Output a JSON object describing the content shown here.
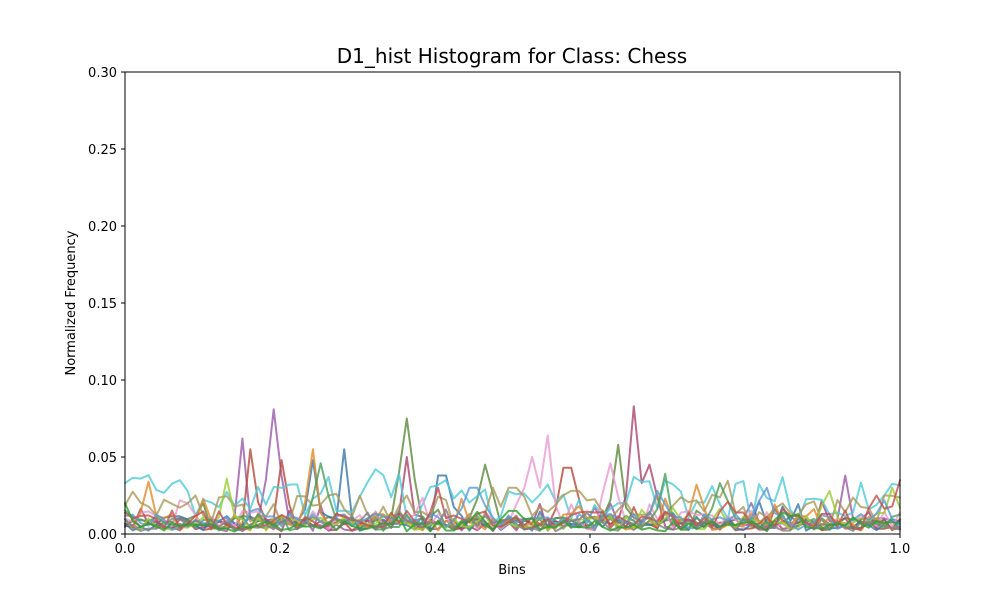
{
  "chart_data": {
    "type": "line",
    "title": "D1_hist Histogram for Class: Chess",
    "xlabel": "Bins",
    "ylabel": "Normalized Frequency",
    "xlim": [
      0.0,
      1.0
    ],
    "ylim": [
      0.0,
      0.3
    ],
    "xticks": [
      "0.0",
      "0.2",
      "0.4",
      "0.6",
      "0.8",
      "1.0"
    ],
    "yticks": [
      "0.00",
      "0.05",
      "0.10",
      "0.15",
      "0.20",
      "0.25",
      "0.30"
    ],
    "grid": false,
    "legend": "none",
    "bins": 100,
    "series": [
      {
        "color": "#9b59a8",
        "peaks": [
          [
            0.19,
            0.081
          ],
          [
            0.15,
            0.062
          ],
          [
            0.93,
            0.038
          ]
        ],
        "base": 0.006
      },
      {
        "color": "#b5493a",
        "peaks": [
          [
            0.16,
            0.055
          ],
          [
            0.2,
            0.048
          ],
          [
            0.57,
            0.043
          ]
        ],
        "base": 0.006
      },
      {
        "color": "#5b8a3c",
        "peaks": [
          [
            0.365,
            0.075
          ],
          [
            0.465,
            0.045
          ],
          [
            0.64,
            0.058
          ]
        ],
        "base": 0.007
      },
      {
        "color": "#a8466e",
        "peaks": [
          [
            0.655,
            0.083
          ],
          [
            0.675,
            0.045
          ],
          [
            0.365,
            0.05
          ]
        ],
        "base": 0.006
      },
      {
        "color": "#3a74a8",
        "peaks": [
          [
            0.28,
            0.055
          ],
          [
            0.24,
            0.048
          ],
          [
            0.41,
            0.038
          ]
        ],
        "base": 0.007
      },
      {
        "color": "#4ec9d6",
        "peaks": [
          [
            0.0,
            0.033
          ],
          [
            0.02,
            0.036
          ],
          [
            0.07,
            0.032
          ],
          [
            0.32,
            0.042
          ],
          [
            0.2,
            0.03
          ]
        ],
        "base": 0.022
      },
      {
        "color": "#e89ad0",
        "peaks": [
          [
            0.545,
            0.064
          ],
          [
            0.525,
            0.05
          ],
          [
            0.625,
            0.046
          ]
        ],
        "base": 0.009
      },
      {
        "color": "#e0892a",
        "peaks": [
          [
            0.245,
            0.055
          ],
          [
            0.03,
            0.034
          ],
          [
            0.735,
            0.032
          ],
          [
            0.1,
            0.023
          ]
        ],
        "base": 0.008
      },
      {
        "color": "#a89a5a",
        "peaks": [
          [
            0.5,
            0.03
          ],
          [
            0.58,
            0.028
          ],
          [
            0.26,
            0.025
          ]
        ],
        "base": 0.015
      },
      {
        "color": "#4a9e5a",
        "peaks": [
          [
            0.255,
            0.046
          ],
          [
            0.695,
            0.039
          ],
          [
            0.77,
            0.033
          ]
        ],
        "base": 0.007
      },
      {
        "color": "#9acd32",
        "peaks": [
          [
            0.91,
            0.028
          ],
          [
            0.13,
            0.036
          ],
          [
            0.99,
            0.03
          ]
        ],
        "base": 0.007
      },
      {
        "color": "#5b9bd5",
        "peaks": [
          [
            0.83,
            0.03
          ],
          [
            0.45,
            0.03
          ],
          [
            0.69,
            0.028
          ]
        ],
        "base": 0.008
      },
      {
        "color": "#c0504d",
        "peaks": [
          [
            0.97,
            0.025
          ],
          [
            1.0,
            0.035
          ],
          [
            0.4,
            0.03
          ]
        ],
        "base": 0.009
      },
      {
        "color": "#7f7f7f",
        "peaks": [
          [
            0.35,
            0.015
          ],
          [
            0.6,
            0.012
          ]
        ],
        "base": 0.006
      },
      {
        "color": "#2ca02c",
        "peaks": [
          [
            0.0,
            0.02
          ],
          [
            0.5,
            0.015
          ],
          [
            0.85,
            0.014
          ]
        ],
        "base": 0.005
      }
    ]
  }
}
